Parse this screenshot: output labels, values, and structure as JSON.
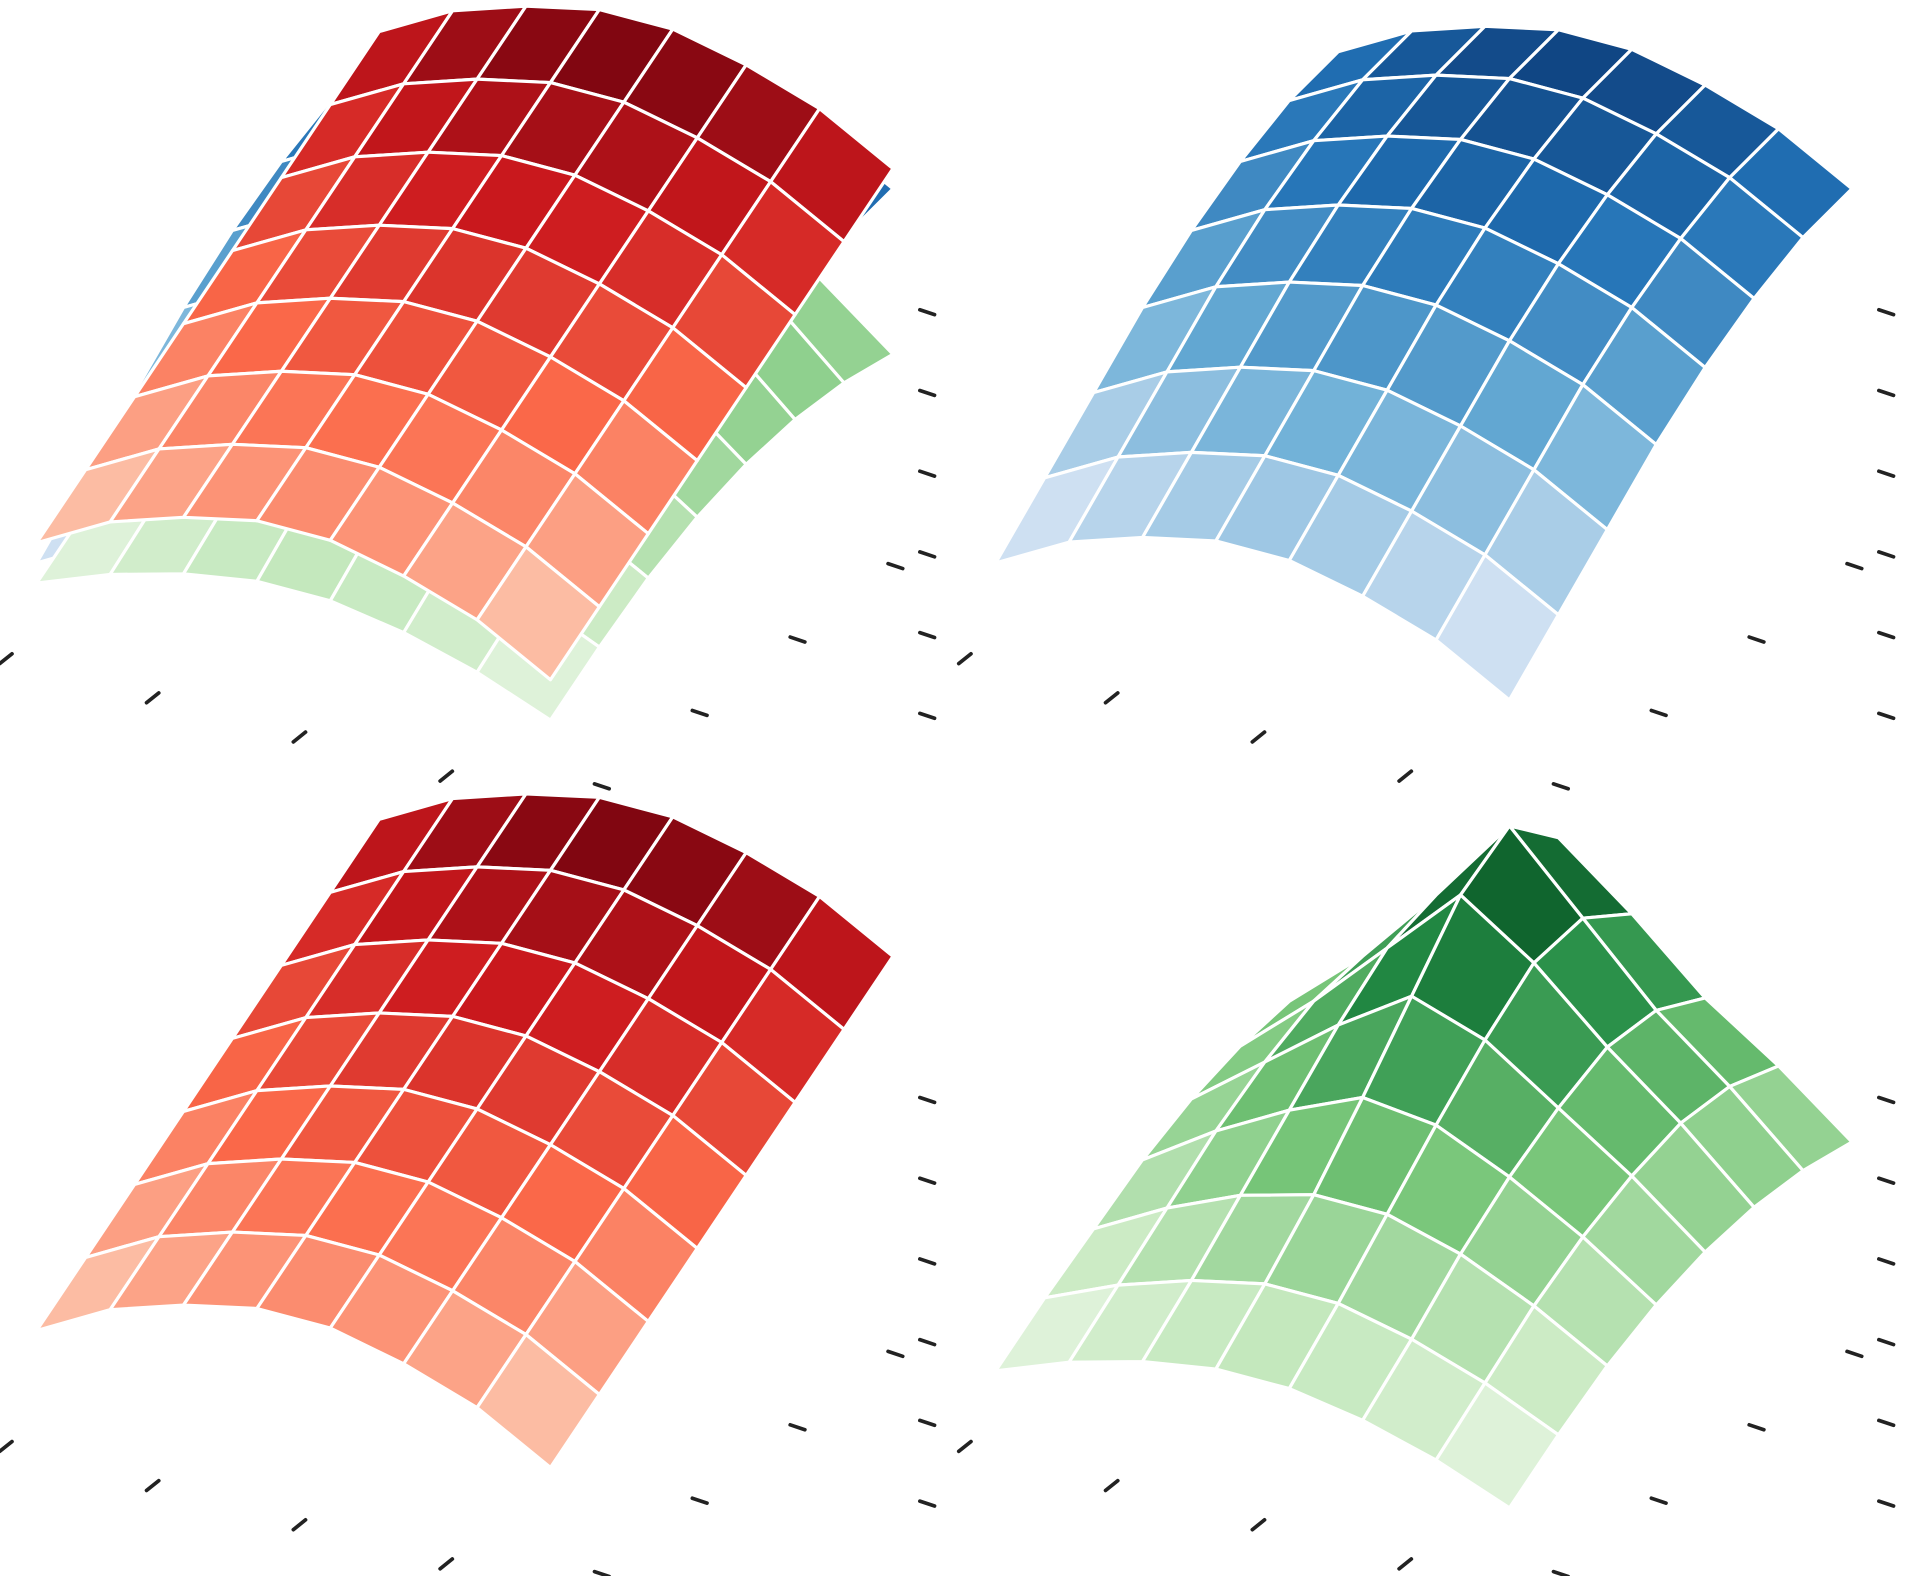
{
  "chart_data": [
    {
      "type": "surface",
      "x": [
        0,
        1,
        2,
        3,
        4,
        5,
        6,
        7
      ],
      "y": [
        0,
        1,
        2,
        3,
        4,
        5,
        6,
        7
      ],
      "xlim": [
        0,
        7
      ],
      "ylim": [
        0,
        7
      ],
      "zlim": [
        0,
        1
      ],
      "xticks": [
        0,
        2,
        4,
        6
      ],
      "yticks": [
        0,
        2,
        4,
        6
      ],
      "zticks": [
        0,
        0.2,
        0.4,
        0.6,
        0.8,
        1
      ],
      "series": [
        {
          "colors": [
            "#f7fbff",
            "#c6dbef",
            "#6baed6",
            "#2171b5",
            "#08306b"
          ],
          "z": [
            [
              0.1,
              0.2,
              0.26,
              0.3,
              0.3,
              0.26,
              0.2,
              0.1
            ],
            [
              0.22,
              0.32,
              0.38,
              0.42,
              0.42,
              0.38,
              0.32,
              0.22
            ],
            [
              0.34,
              0.44,
              0.5,
              0.54,
              0.54,
              0.5,
              0.44,
              0.34
            ],
            [
              0.46,
              0.56,
              0.62,
              0.66,
              0.66,
              0.62,
              0.56,
              0.46
            ],
            [
              0.56,
              0.66,
              0.72,
              0.76,
              0.76,
              0.72,
              0.66,
              0.56
            ],
            [
              0.64,
              0.74,
              0.8,
              0.84,
              0.84,
              0.8,
              0.74,
              0.64
            ],
            [
              0.7,
              0.8,
              0.86,
              0.9,
              0.9,
              0.86,
              0.8,
              0.7
            ],
            [
              0.73,
              0.83,
              0.89,
              0.93,
              0.93,
              0.89,
              0.83,
              0.73
            ]
          ]
        },
        {
          "colors": [
            "#f7fcf5",
            "#c7e9c0",
            "#74c476",
            "#238b45",
            "#00441b"
          ],
          "z": [
            [
              0.05,
              0.12,
              0.17,
              0.2,
              0.2,
              0.17,
              0.12,
              0.05
            ],
            [
              0.14,
              0.22,
              0.28,
              0.32,
              0.32,
              0.28,
              0.22,
              0.14
            ],
            [
              0.22,
              0.32,
              0.4,
              0.45,
              0.45,
              0.4,
              0.32,
              0.22
            ],
            [
              0.3,
              0.42,
              0.52,
              0.6,
              0.58,
              0.5,
              0.4,
              0.28
            ],
            [
              0.36,
              0.5,
              0.64,
              0.76,
              0.7,
              0.58,
              0.46,
              0.32
            ],
            [
              0.4,
              0.56,
              0.74,
              0.92,
              0.8,
              0.64,
              0.5,
              0.34
            ],
            [
              0.42,
              0.58,
              0.78,
              1.0,
              0.82,
              0.64,
              0.5,
              0.34
            ],
            [
              0.4,
              0.54,
              0.72,
              0.88,
              0.74,
              0.58,
              0.46,
              0.32
            ]
          ]
        },
        {
          "colors": [
            "#fff5f0",
            "#fcbba1",
            "#fb6a4a",
            "#cb181d",
            "#67000d"
          ],
          "z": [
            [
              0.15,
              0.25,
              0.31,
              0.35,
              0.35,
              0.31,
              0.25,
              0.15
            ],
            [
              0.24,
              0.34,
              0.4,
              0.44,
              0.44,
              0.4,
              0.34,
              0.24
            ],
            [
              0.33,
              0.43,
              0.49,
              0.53,
              0.53,
              0.49,
              0.43,
              0.33
            ],
            [
              0.42,
              0.52,
              0.58,
              0.62,
              0.62,
              0.58,
              0.52,
              0.42
            ],
            [
              0.51,
              0.61,
              0.67,
              0.71,
              0.71,
              0.67,
              0.61,
              0.51
            ],
            [
              0.6,
              0.7,
              0.76,
              0.8,
              0.8,
              0.76,
              0.7,
              0.6
            ],
            [
              0.69,
              0.79,
              0.85,
              0.89,
              0.89,
              0.85,
              0.79,
              0.69
            ],
            [
              0.78,
              0.88,
              0.94,
              0.98,
              0.98,
              0.94,
              0.88,
              0.78
            ]
          ]
        }
      ]
    },
    {
      "type": "surface",
      "x": [
        0,
        1,
        2,
        3,
        4,
        5,
        6,
        7
      ],
      "y": [
        0,
        1,
        2,
        3,
        4,
        5,
        6,
        7
      ],
      "xlim": [
        0,
        7
      ],
      "ylim": [
        0,
        7
      ],
      "zlim": [
        0,
        1
      ],
      "xticks": [
        0,
        2,
        4,
        6
      ],
      "yticks": [
        0,
        2,
        4,
        6
      ],
      "zticks": [
        0,
        0.2,
        0.4,
        0.6,
        0.8,
        1
      ],
      "series": [
        {
          "colors": [
            "#f7fbff",
            "#c6dbef",
            "#6baed6",
            "#2171b5",
            "#08306b"
          ],
          "z": [
            [
              0.1,
              0.2,
              0.26,
              0.3,
              0.3,
              0.26,
              0.2,
              0.1
            ],
            [
              0.22,
              0.32,
              0.38,
              0.42,
              0.42,
              0.38,
              0.32,
              0.22
            ],
            [
              0.34,
              0.44,
              0.5,
              0.54,
              0.54,
              0.5,
              0.44,
              0.34
            ],
            [
              0.46,
              0.56,
              0.62,
              0.66,
              0.66,
              0.62,
              0.56,
              0.46
            ],
            [
              0.56,
              0.66,
              0.72,
              0.76,
              0.76,
              0.72,
              0.66,
              0.56
            ],
            [
              0.64,
              0.74,
              0.8,
              0.84,
              0.84,
              0.8,
              0.74,
              0.64
            ],
            [
              0.7,
              0.8,
              0.86,
              0.9,
              0.9,
              0.86,
              0.8,
              0.7
            ],
            [
              0.73,
              0.83,
              0.89,
              0.93,
              0.93,
              0.89,
              0.83,
              0.73
            ]
          ]
        }
      ]
    },
    {
      "type": "surface",
      "x": [
        0,
        1,
        2,
        3,
        4,
        5,
        6,
        7
      ],
      "y": [
        0,
        1,
        2,
        3,
        4,
        5,
        6,
        7
      ],
      "xlim": [
        0,
        7
      ],
      "ylim": [
        0,
        7
      ],
      "zlim": [
        0,
        1
      ],
      "xticks": [
        0,
        2,
        4,
        6
      ],
      "yticks": [
        0,
        2,
        4,
        6
      ],
      "zticks": [
        0,
        0.2,
        0.4,
        0.6,
        0.8,
        1
      ],
      "series": [
        {
          "colors": [
            "#fff5f0",
            "#fcbba1",
            "#fb6a4a",
            "#cb181d",
            "#67000d"
          ],
          "z": [
            [
              0.15,
              0.25,
              0.31,
              0.35,
              0.35,
              0.31,
              0.25,
              0.15
            ],
            [
              0.24,
              0.34,
              0.4,
              0.44,
              0.44,
              0.4,
              0.34,
              0.24
            ],
            [
              0.33,
              0.43,
              0.49,
              0.53,
              0.53,
              0.49,
              0.43,
              0.33
            ],
            [
              0.42,
              0.52,
              0.58,
              0.62,
              0.62,
              0.58,
              0.52,
              0.42
            ],
            [
              0.51,
              0.61,
              0.67,
              0.71,
              0.71,
              0.67,
              0.61,
              0.51
            ],
            [
              0.6,
              0.7,
              0.76,
              0.8,
              0.8,
              0.76,
              0.7,
              0.6
            ],
            [
              0.69,
              0.79,
              0.85,
              0.89,
              0.89,
              0.85,
              0.79,
              0.69
            ],
            [
              0.78,
              0.88,
              0.94,
              0.98,
              0.98,
              0.94,
              0.88,
              0.78
            ]
          ]
        }
      ]
    },
    {
      "type": "surface",
      "x": [
        0,
        1,
        2,
        3,
        4,
        5,
        6,
        7
      ],
      "y": [
        0,
        1,
        2,
        3,
        4,
        5,
        6,
        7
      ],
      "xlim": [
        0,
        7
      ],
      "ylim": [
        0,
        7
      ],
      "zlim": [
        0,
        1
      ],
      "xticks": [
        0,
        2,
        4,
        6
      ],
      "yticks": [
        0,
        2,
        4,
        6
      ],
      "zticks": [
        0,
        0.2,
        0.4,
        0.6,
        0.8,
        1
      ],
      "series": [
        {
          "colors": [
            "#f7fcf5",
            "#c7e9c0",
            "#74c476",
            "#238b45",
            "#00441b"
          ],
          "z": [
            [
              0.05,
              0.12,
              0.17,
              0.2,
              0.2,
              0.17,
              0.12,
              0.05
            ],
            [
              0.14,
              0.22,
              0.28,
              0.32,
              0.32,
              0.28,
              0.22,
              0.14
            ],
            [
              0.22,
              0.32,
              0.4,
              0.45,
              0.45,
              0.4,
              0.32,
              0.22
            ],
            [
              0.3,
              0.42,
              0.52,
              0.6,
              0.58,
              0.5,
              0.4,
              0.28
            ],
            [
              0.36,
              0.5,
              0.64,
              0.76,
              0.7,
              0.58,
              0.46,
              0.32
            ],
            [
              0.4,
              0.56,
              0.74,
              0.92,
              0.8,
              0.64,
              0.5,
              0.34
            ],
            [
              0.42,
              0.58,
              0.78,
              1.0,
              0.82,
              0.64,
              0.5,
              0.34
            ],
            [
              0.4,
              0.54,
              0.72,
              0.88,
              0.74,
              0.58,
              0.46,
              0.32
            ]
          ]
        }
      ]
    }
  ]
}
